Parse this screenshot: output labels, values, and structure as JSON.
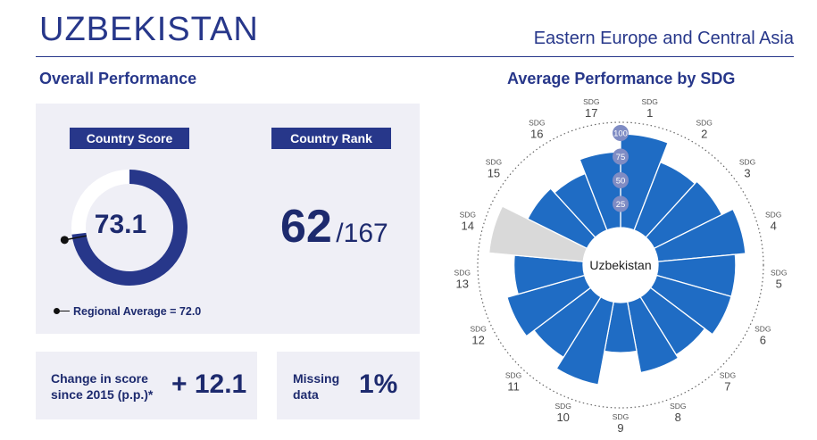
{
  "header": {
    "country": "UZBEKISTAN",
    "region": "Eastern Europe and Central Asia"
  },
  "overall": {
    "title": "Overall Performance",
    "score_label": "Country Score",
    "score": "73.1",
    "score_value": 73.1,
    "rank_label": "Country Rank",
    "rank": "62",
    "rank_total": "/167",
    "regional_average": "Regional Average = 72.0",
    "regional_average_value": 72.0,
    "change_label_1": "Change in score",
    "change_label_2": "since 2015 (p.p.)*",
    "change_value": "+ 12.1",
    "missing_label_1": "Missing",
    "missing_label_2": "data",
    "missing_value": "1%"
  },
  "chart_data": {
    "type": "polar-bar",
    "title": "Average Performance by SDG",
    "center_label": "Uzbekistan",
    "sdg_prefix": "SDG",
    "scale_ticks": [
      "25",
      "50",
      "75",
      "100"
    ],
    "rlim": [
      0,
      100
    ],
    "categories": [
      "1",
      "2",
      "3",
      "4",
      "5",
      "6",
      "7",
      "8",
      "9",
      "10",
      "11",
      "12",
      "13",
      "14",
      "15",
      "16",
      "17"
    ],
    "values": [
      99,
      77,
      80,
      93,
      82,
      82,
      72,
      76,
      53,
      89,
      75,
      85,
      73,
      100,
      70,
      64,
      80
    ],
    "bar_color": "#1f6cc4",
    "missing_color": "#d9d9d9",
    "missing_categories": [
      "14"
    ]
  }
}
